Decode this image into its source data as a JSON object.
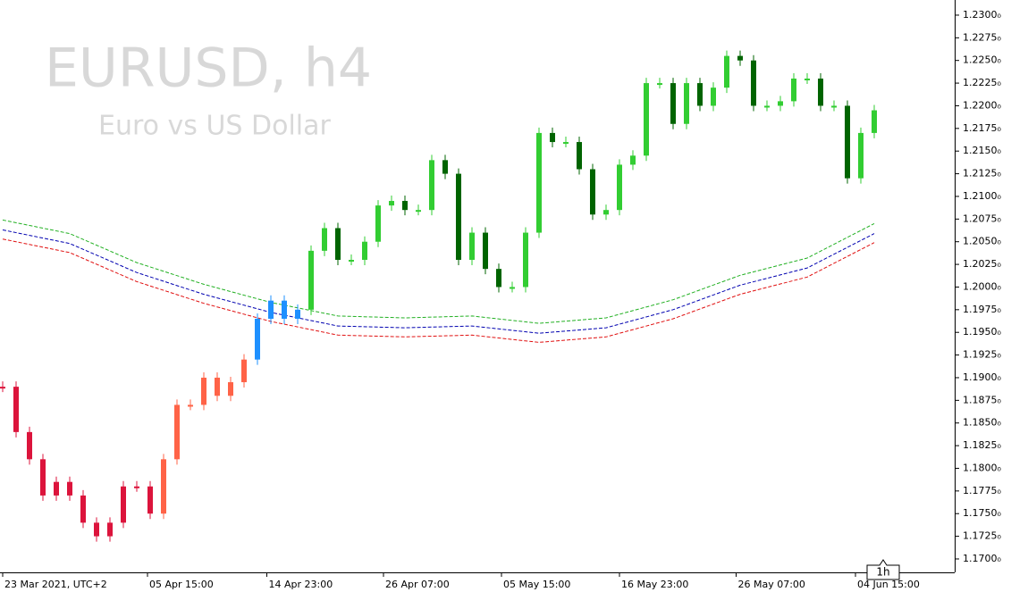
{
  "chart_data": {
    "type": "candlestick",
    "title": "EURUSD, h4",
    "subtitle": "Euro vs US Dollar",
    "timeframe_button": "1h",
    "x": [
      0,
      1,
      2,
      3,
      4,
      5,
      6,
      7,
      8,
      9,
      10,
      11,
      12,
      13,
      14,
      15,
      16,
      17,
      18,
      19,
      20,
      21,
      22,
      23,
      24,
      25,
      26,
      27,
      28,
      29,
      30,
      31,
      32,
      33,
      34,
      35,
      36,
      37,
      38,
      39,
      40,
      41,
      42,
      43,
      44,
      45,
      46,
      47,
      48,
      49,
      50,
      51,
      52,
      53,
      54,
      55,
      56,
      57,
      58,
      59,
      60,
      61,
      62,
      63,
      64,
      65
    ],
    "series": [
      {
        "name": "EURUSD",
        "values": [
          1.189,
          1.184,
          1.181,
          1.177,
          1.1785,
          1.177,
          1.174,
          1.1725,
          1.174,
          1.178,
          1.178,
          1.175,
          1.181,
          1.187,
          1.187,
          1.19,
          1.188,
          1.1895,
          1.192,
          1.1965,
          1.1985,
          1.1965,
          1.1975,
          1.204,
          1.2065,
          1.203,
          1.203,
          1.205,
          1.209,
          1.2095,
          1.2085,
          1.2085,
          1.214,
          1.2125,
          1.203,
          1.206,
          1.202,
          1.2,
          1.2,
          1.206,
          1.217,
          1.216,
          1.216,
          1.213,
          1.208,
          1.2085,
          1.2135,
          1.2145,
          1.2225,
          1.2225,
          1.218,
          1.2225,
          1.22,
          1.222,
          1.2255,
          1.225,
          1.22,
          1.22,
          1.2205,
          1.223,
          1.223,
          1.22,
          1.22,
          1.212,
          1.217,
          1.2195
        ],
        "colors": [
          "#dc143c",
          "#dc143c",
          "#dc143c",
          "#dc143c",
          "#dc143c",
          "#dc143c",
          "#dc143c",
          "#dc143c",
          "#dc143c",
          "#dc143c",
          "#dc143c",
          "#dc143c",
          "#ff6347",
          "#ff6347",
          "#ff6347",
          "#ff6347",
          "#ff6347",
          "#ff6347",
          "#ff6347",
          "#1e90ff",
          "#1e90ff",
          "#1e90ff",
          "#1e90ff",
          "#32cd32",
          "#32cd32",
          "#006400",
          "#32cd32",
          "#32cd32",
          "#32cd32",
          "#32cd32",
          "#006400",
          "#32cd32",
          "#32cd32",
          "#006400",
          "#006400",
          "#32cd32",
          "#006400",
          "#006400",
          "#32cd32",
          "#32cd32",
          "#32cd32",
          "#006400",
          "#32cd32",
          "#006400",
          "#006400",
          "#32cd32",
          "#32cd32",
          "#32cd32",
          "#32cd32",
          "#32cd32",
          "#006400",
          "#32cd32",
          "#006400",
          "#32cd32",
          "#32cd32",
          "#006400",
          "#006400",
          "#32cd32",
          "#32cd32",
          "#32cd32",
          "#32cd32",
          "#006400",
          "#32cd32",
          "#006400",
          "#32cd32",
          "#32cd32"
        ]
      }
    ],
    "bands": {
      "x": [
        0,
        5,
        10,
        15,
        20,
        25,
        30,
        35,
        40,
        45,
        50,
        55,
        60,
        65
      ],
      "lines": [
        {
          "color": "#22b022",
          "values": [
            1.2074,
            1.2059,
            1.2027,
            1.2003,
            1.1983,
            1.1968,
            1.1966,
            1.1968,
            1.196,
            1.1966,
            1.1986,
            1.2013,
            1.2032,
            1.207
          ]
        },
        {
          "color": "#0000b0",
          "values": [
            1.2063,
            1.2048,
            1.2016,
            1.1992,
            1.1972,
            1.1957,
            1.1955,
            1.1957,
            1.1949,
            1.1955,
            1.1975,
            1.2002,
            1.2021,
            1.2059
          ]
        },
        {
          "color": "#e01010",
          "values": [
            1.2053,
            1.2038,
            1.2006,
            1.1982,
            1.1962,
            1.1947,
            1.1945,
            1.1947,
            1.1939,
            1.1945,
            1.1965,
            1.1992,
            1.2011,
            1.2049
          ]
        }
      ]
    },
    "xlim": [
      -0.2,
      71.0
    ],
    "ylim": [
      1.16852,
      1.23167
    ],
    "xticks": [
      {
        "value": 0,
        "label": "23 Mar 2021, UTC+2"
      },
      {
        "value": 10.8,
        "label": "05 Apr 15:00"
      },
      {
        "value": 19.7,
        "label": "14 Apr 23:00"
      },
      {
        "value": 28.4,
        "label": "26 Apr 07:00"
      },
      {
        "value": 37.2,
        "label": "05 May 15:00"
      },
      {
        "value": 46,
        "label": "16 May 23:00"
      },
      {
        "value": 54.7,
        "label": "26 May 07:00"
      },
      {
        "value": 63.6,
        "label": "04 Jun 15:00"
      }
    ],
    "yticks": [
      {
        "value": 1.17,
        "label": "1.1700₀"
      },
      {
        "value": 1.1725,
        "label": "1.1725₀"
      },
      {
        "value": 1.175,
        "label": "1.1750₀"
      },
      {
        "value": 1.1775,
        "label": "1.1775₀"
      },
      {
        "value": 1.18,
        "label": "1.1800₀"
      },
      {
        "value": 1.1825,
        "label": "1.1825₀"
      },
      {
        "value": 1.185,
        "label": "1.1850₀"
      },
      {
        "value": 1.1875,
        "label": "1.1875₀"
      },
      {
        "value": 1.19,
        "label": "1.1900₀"
      },
      {
        "value": 1.1925,
        "label": "1.1925₀"
      },
      {
        "value": 1.195,
        "label": "1.1950₀"
      },
      {
        "value": 1.1975,
        "label": "1.1975₀"
      },
      {
        "value": 1.2,
        "label": "1.2000₀"
      },
      {
        "value": 1.2025,
        "label": "1.2025₀"
      },
      {
        "value": 1.205,
        "label": "1.2050₀"
      },
      {
        "value": 1.2075,
        "label": "1.2075₀"
      },
      {
        "value": 1.21,
        "label": "1.2100₀"
      },
      {
        "value": 1.2125,
        "label": "1.2125₀"
      },
      {
        "value": 1.215,
        "label": "1.2150₀"
      },
      {
        "value": 1.2175,
        "label": "1.2175₀"
      },
      {
        "value": 1.22,
        "label": "1.2200₀"
      },
      {
        "value": 1.2225,
        "label": "1.2225₀"
      },
      {
        "value": 1.225,
        "label": "1.2250₀"
      },
      {
        "value": 1.2275,
        "label": "1.2275₀"
      },
      {
        "value": 1.23,
        "label": "1.2300₀"
      }
    ]
  }
}
